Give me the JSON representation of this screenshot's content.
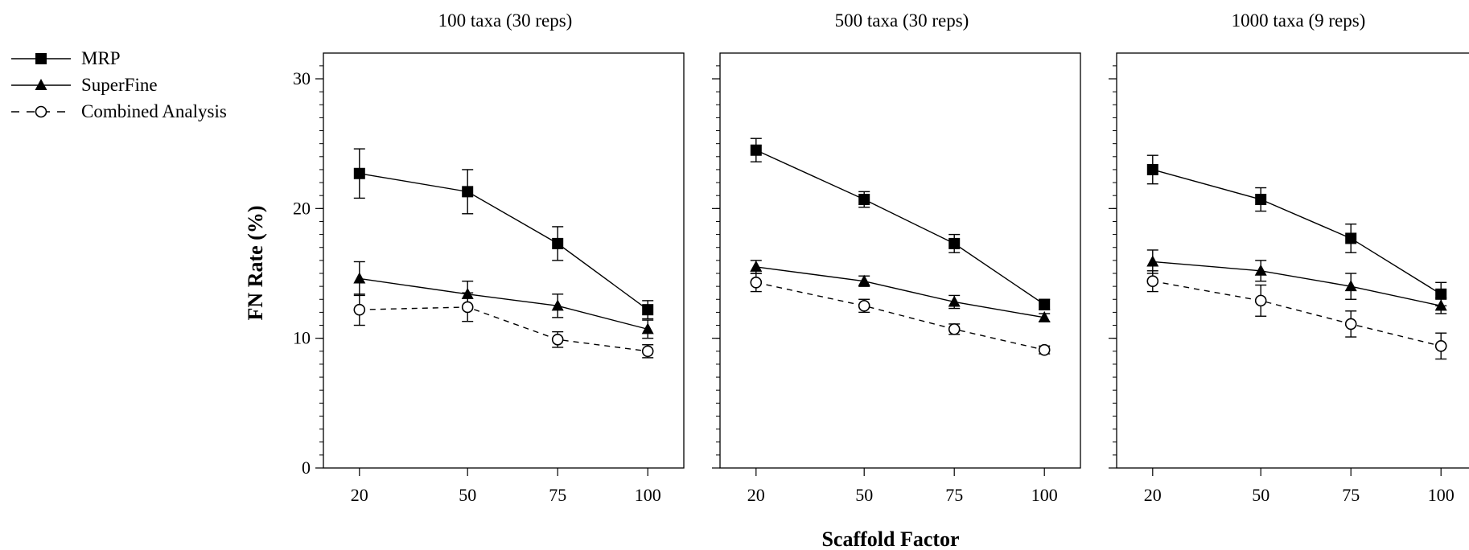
{
  "chart_data": {
    "type": "line",
    "xlabel": "Scaffold Factor",
    "ylabel": "FN Rate (%)",
    "ylim": [
      0,
      30
    ],
    "yticks": [
      "0",
      "10",
      "20",
      "30"
    ],
    "categories": [
      "20",
      "50",
      "75",
      "100"
    ],
    "x": [
      20,
      50,
      75,
      100
    ],
    "xlim": [
      10,
      110
    ],
    "grid": false,
    "legend": {
      "position": "top-left",
      "entries": [
        {
          "name": "MRP",
          "marker": "filled-square",
          "line": "solid"
        },
        {
          "name": "SuperFine",
          "marker": "filled-triangle",
          "line": "solid"
        },
        {
          "name": "Combined Analysis",
          "marker": "open-circle",
          "line": "dashed"
        }
      ]
    },
    "panels": [
      {
        "title": "100 taxa (30 reps)",
        "series": [
          {
            "name": "MRP",
            "values": [
              22.7,
              21.3,
              17.3,
              12.2
            ],
            "errors": [
              1.9,
              1.7,
              1.3,
              0.7
            ]
          },
          {
            "name": "SuperFine",
            "values": [
              14.6,
              13.4,
              12.5,
              10.7
            ],
            "errors": [
              1.3,
              1.0,
              0.9,
              0.7
            ]
          },
          {
            "name": "Combined Analysis",
            "values": [
              12.2,
              12.4,
              9.9,
              9.0
            ],
            "errors": [
              1.2,
              1.1,
              0.6,
              0.5
            ]
          }
        ]
      },
      {
        "title": "500 taxa (30 reps)",
        "series": [
          {
            "name": "MRP",
            "values": [
              24.5,
              20.7,
              17.3,
              12.6
            ],
            "errors": [
              0.9,
              0.6,
              0.7,
              0.4
            ]
          },
          {
            "name": "SuperFine",
            "values": [
              15.5,
              14.4,
              12.8,
              11.6
            ],
            "errors": [
              0.5,
              0.4,
              0.5,
              0.3
            ]
          },
          {
            "name": "Combined Analysis",
            "values": [
              14.3,
              12.5,
              10.7,
              9.1
            ],
            "errors": [
              0.7,
              0.5,
              0.4,
              0.3
            ]
          }
        ]
      },
      {
        "title": "1000 taxa (9 reps)",
        "series": [
          {
            "name": "MRP",
            "values": [
              23.0,
              20.7,
              17.7,
              13.4
            ],
            "errors": [
              1.1,
              0.9,
              1.1,
              0.9
            ]
          },
          {
            "name": "SuperFine",
            "values": [
              15.9,
              15.2,
              14.0,
              12.5
            ],
            "errors": [
              0.9,
              0.8,
              1.0,
              0.6
            ]
          },
          {
            "name": "Combined Analysis",
            "values": [
              14.4,
              12.9,
              11.1,
              9.4
            ],
            "errors": [
              0.8,
              1.2,
              1.0,
              1.0
            ]
          }
        ]
      }
    ]
  }
}
